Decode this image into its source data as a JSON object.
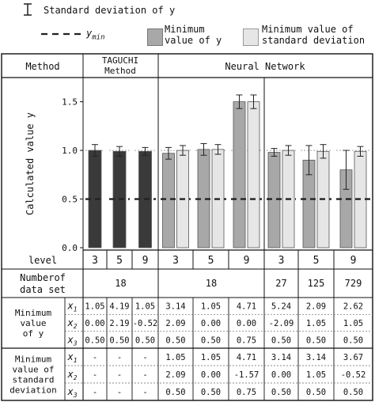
{
  "legend": {
    "std_dev_label": "Standard deviation of y",
    "ymin_label": "y",
    "ymin_sub": "min",
    "min_y_label_line1": "Minimum",
    "min_y_label_line2": "value of y",
    "min_sd_label_line1": "Minimum value of",
    "min_sd_label_line2": "standard deviation"
  },
  "colors": {
    "taguchi_bar": "#3a3a3a",
    "nn_min_y_bar": "#a8a8a8",
    "nn_min_sd_bar": "#e6e6e6",
    "ymin_line": "#222222"
  },
  "table": {
    "method_label": "Method",
    "taguchi_label_line1": "TAGUCHI",
    "taguchi_label_line2": "Method",
    "nn_label": "Neural Network",
    "level_label": "level",
    "levels": [
      "3",
      "5",
      "9",
      "3",
      "5",
      "9",
      "3",
      "5",
      "9"
    ],
    "ndata_label_line1": "Numberof",
    "ndata_label_line2": "data set",
    "ndata_values": [
      "18",
      "18",
      "27",
      "125",
      "729"
    ],
    "min_y_label_line1": "Minimum",
    "min_y_label_line2": "value",
    "min_y_label_line3": "of y",
    "min_sd_label_line1": "Minimum",
    "min_sd_label_line2": "value of",
    "min_sd_label_line3": "standard",
    "min_sd_label_line4": "deviation",
    "x_labels": [
      "x1",
      "x2",
      "x3"
    ],
    "min_y_rows": [
      [
        "1.05",
        "4.19",
        "1.05",
        "3.14",
        "1.05",
        "4.71",
        "5.24",
        "2.09",
        "2.62"
      ],
      [
        "0.00",
        "2.19",
        "-0.52",
        "2.09",
        "0.00",
        "0.00",
        "-2.09",
        "1.05",
        "1.05"
      ],
      [
        "0.50",
        "0.50",
        "0.50",
        "0.50",
        "0.50",
        "0.75",
        "0.50",
        "0.50",
        "0.50"
      ]
    ],
    "min_sd_rows": [
      [
        "-",
        "-",
        "-",
        "1.05",
        "1.05",
        "4.71",
        "3.14",
        "3.14",
        "3.67"
      ],
      [
        "-",
        "-",
        "-",
        "2.09",
        "0.00",
        "-1.57",
        "0.00",
        "1.05",
        "-0.52"
      ],
      [
        "-",
        "-",
        "-",
        "0.50",
        "0.50",
        "0.75",
        "0.50",
        "0.50",
        "0.50"
      ]
    ]
  },
  "chart_data": {
    "type": "bar",
    "ylabel": "Calculated value y",
    "ylim": [
      0.0,
      1.7
    ],
    "yticks": [
      "0.0",
      "0.5",
      "1.0",
      "1.5"
    ],
    "ymin_value": 0.5,
    "groups": [
      {
        "method": "TAGUCHI",
        "level": "3",
        "bars": [
          {
            "kind": "taguchi",
            "value": 1.0,
            "sd": 0.06
          }
        ]
      },
      {
        "method": "TAGUCHI",
        "level": "5",
        "bars": [
          {
            "kind": "taguchi",
            "value": 0.99,
            "sd": 0.05
          }
        ]
      },
      {
        "method": "TAGUCHI",
        "level": "9",
        "bars": [
          {
            "kind": "taguchi",
            "value": 0.99,
            "sd": 0.04
          }
        ]
      },
      {
        "method": "NN",
        "level": "3",
        "bars": [
          {
            "kind": "min_y",
            "value": 0.97,
            "sd": 0.06
          },
          {
            "kind": "min_sd",
            "value": 1.0,
            "sd": 0.05
          }
        ]
      },
      {
        "method": "NN",
        "level": "5",
        "bars": [
          {
            "kind": "min_y",
            "value": 1.01,
            "sd": 0.06
          },
          {
            "kind": "min_sd",
            "value": 1.01,
            "sd": 0.05
          }
        ]
      },
      {
        "method": "NN",
        "level": "9",
        "bars": [
          {
            "kind": "min_y",
            "value": 1.5,
            "sd": 0.07
          },
          {
            "kind": "min_sd",
            "value": 1.5,
            "sd": 0.07
          }
        ]
      },
      {
        "method": "NN",
        "level": "3",
        "bars": [
          {
            "kind": "min_y",
            "value": 0.98,
            "sd": 0.04
          },
          {
            "kind": "min_sd",
            "value": 1.0,
            "sd": 0.05
          }
        ]
      },
      {
        "method": "NN",
        "level": "5",
        "bars": [
          {
            "kind": "min_y",
            "value": 0.9,
            "sd": 0.15
          },
          {
            "kind": "min_sd",
            "value": 0.99,
            "sd": 0.07
          }
        ]
      },
      {
        "method": "NN",
        "level": "9",
        "bars": [
          {
            "kind": "min_y",
            "value": 0.8,
            "sd": 0.2
          },
          {
            "kind": "min_sd",
            "value": 0.99,
            "sd": 0.05
          }
        ]
      }
    ]
  }
}
